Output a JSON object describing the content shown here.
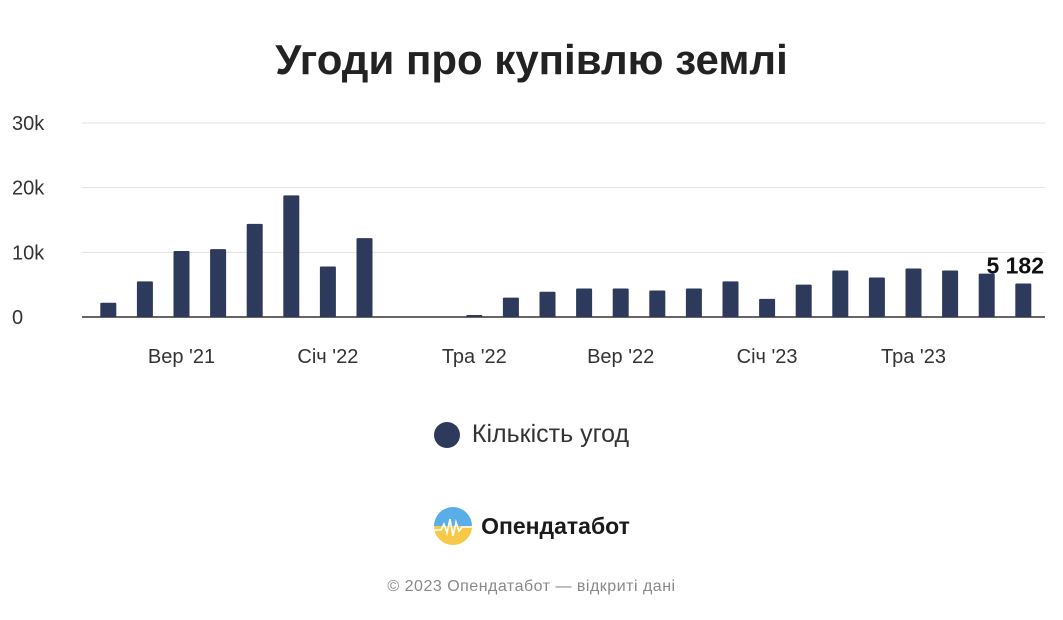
{
  "chart_data": {
    "type": "bar",
    "title": "Угоди про купівлю землі",
    "series": [
      {
        "name": "Кількість угод",
        "color": "#2e3a5c",
        "values": [
          2200,
          5500,
          10200,
          10500,
          14400,
          18800,
          7800,
          12200,
          0,
          0,
          300,
          3000,
          3900,
          4400,
          4400,
          4100,
          4400,
          5500,
          2800,
          5000,
          7200,
          6100,
          7500,
          7200,
          6700,
          5182
        ]
      }
    ],
    "x_tick_labels": [
      {
        "index": 2,
        "label": "Вер '21"
      },
      {
        "index": 6,
        "label": "Січ '22"
      },
      {
        "index": 10,
        "label": "Тра '22"
      },
      {
        "index": 14,
        "label": "Вер '22"
      },
      {
        "index": 18,
        "label": "Січ '23"
      },
      {
        "index": 22,
        "label": "Тра '23"
      }
    ],
    "y_ticks": [
      {
        "value": 0,
        "label": "0"
      },
      {
        "value": 10000,
        "label": "10k"
      },
      {
        "value": 20000,
        "label": "20k"
      },
      {
        "value": 30000,
        "label": "30k"
      }
    ],
    "ylim": [
      0,
      30000
    ],
    "grid": true,
    "data_label": {
      "index": 25,
      "text": "5 182"
    },
    "legend_position": "bottom"
  },
  "brand": {
    "name": "Опендатабот",
    "logo_icon": "opendatabot-logo"
  },
  "footer": "© 2023 Опендатабот — відкриті дані"
}
